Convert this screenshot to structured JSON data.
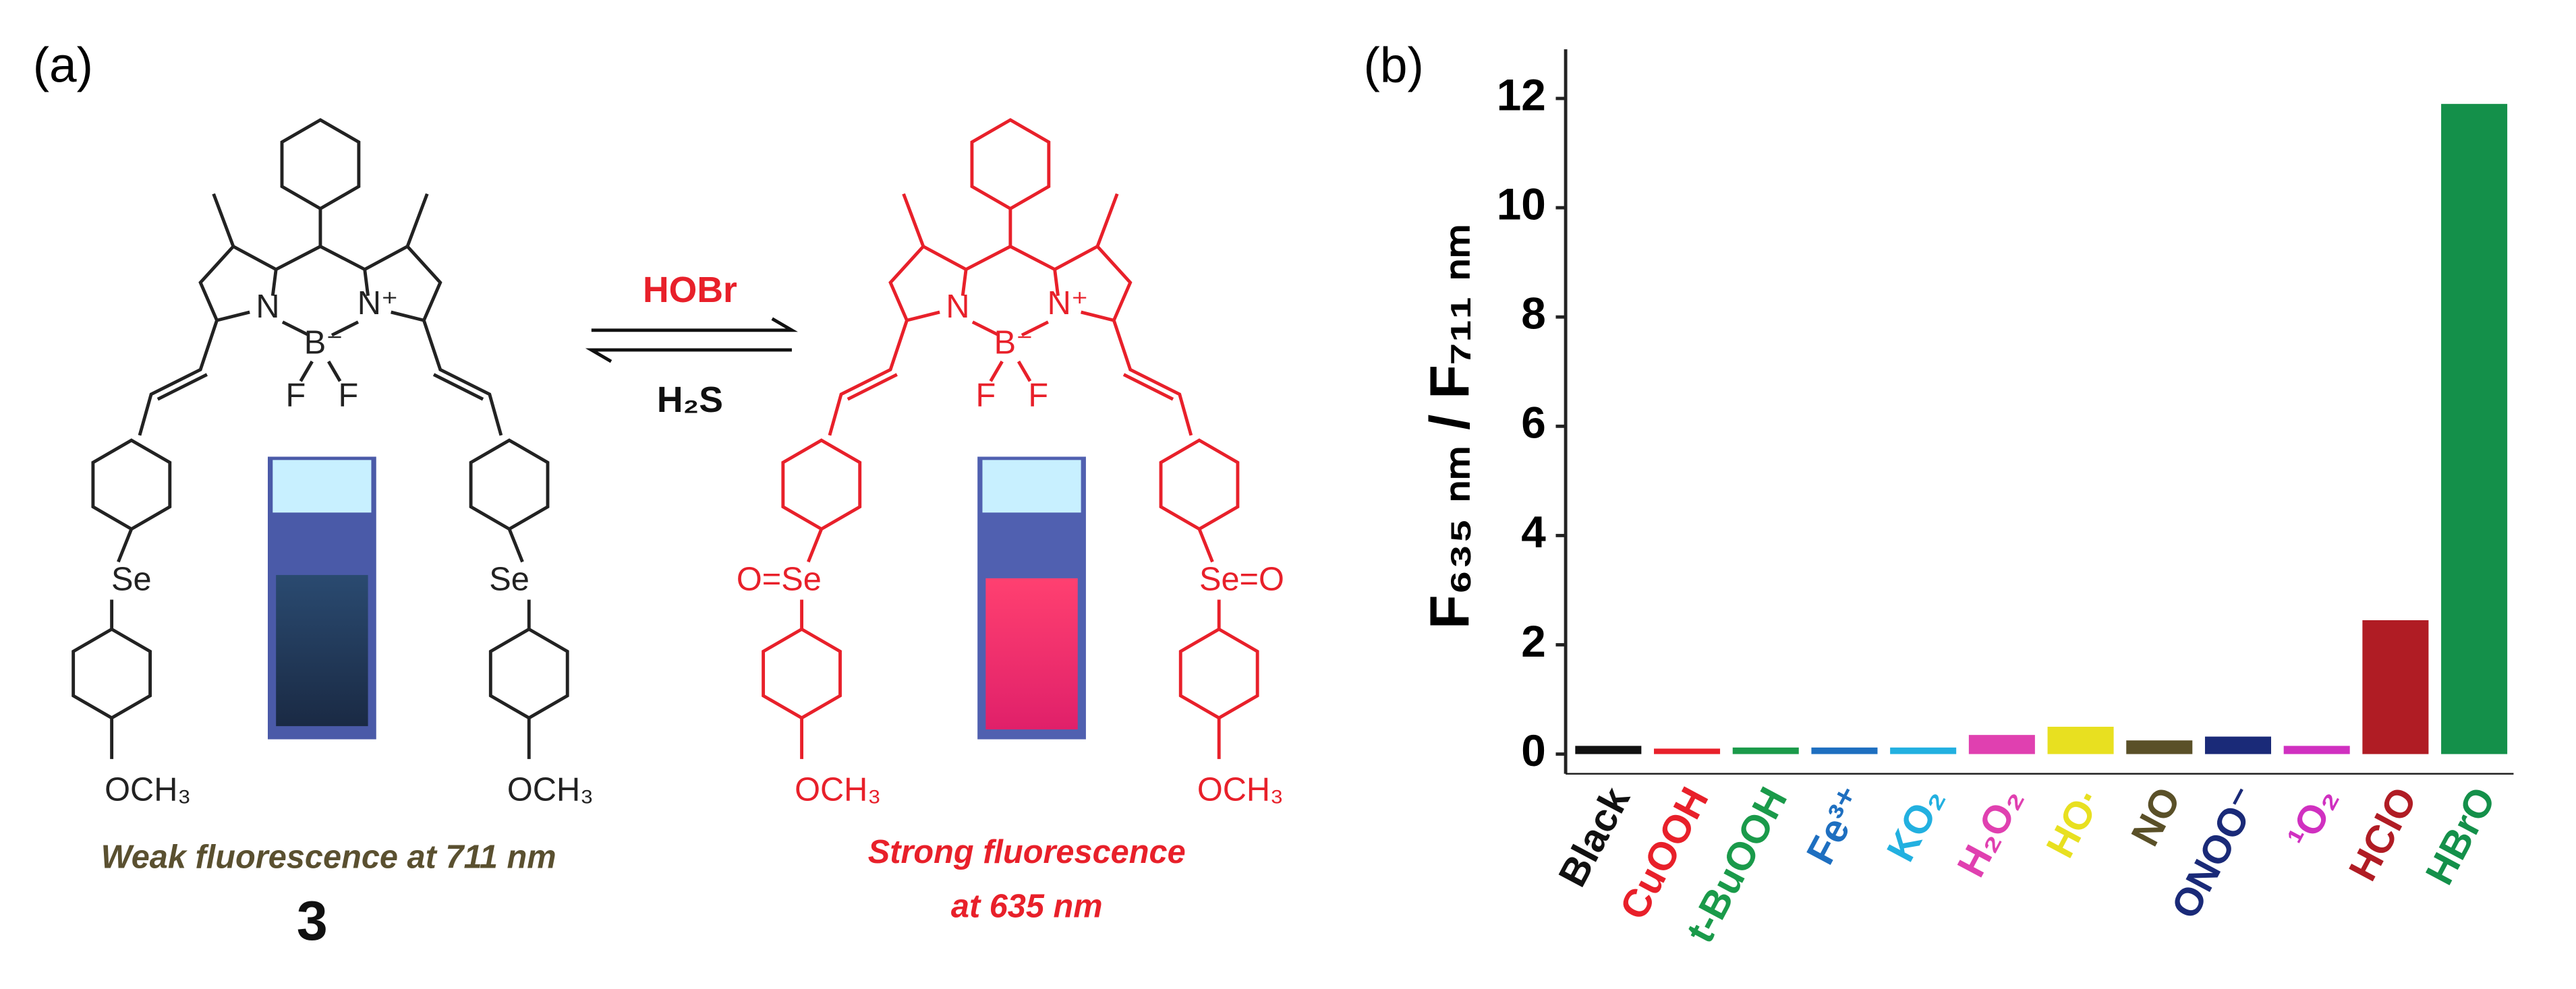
{
  "panel_a": {
    "label": "(a)",
    "reagent_forward": "HOBr",
    "reagent_back": "H₂S",
    "left": {
      "atoms": [
        "N",
        "N⁺",
        "B⁻",
        "F",
        "F",
        "Se",
        "Se",
        "OCH₃",
        "OCH₃"
      ],
      "caption": "Weak fluorescence  at 711 nm",
      "compound": "3"
    },
    "right": {
      "atoms": [
        "N",
        "N⁺",
        "B⁻",
        "F",
        "F",
        "O=Se",
        "Se=O",
        "OCH₃",
        "OCH₃"
      ],
      "caption_lines": [
        "Strong fluorescence",
        "at 635 nm"
      ]
    }
  },
  "chart_data": {
    "type": "bar",
    "panel_label": "(b)",
    "y_label": "F₆₃₅ ₙₘ / F₇₁₁ ₙₘ",
    "categories": [
      "Black",
      "CuOOH",
      "t-BuOOH",
      "Fe³⁺",
      "KO₂",
      "H₂O₂",
      "HO·",
      "NO",
      "ONOO⁻",
      "¹O₂",
      "HClO",
      "HBrO"
    ],
    "values": [
      0.15,
      0.1,
      0.12,
      0.12,
      0.12,
      0.35,
      0.5,
      0.25,
      0.32,
      0.15,
      2.45,
      11.9
    ],
    "colors": [
      "#111111",
      "#e8202a",
      "#1a9a4a",
      "#1e6fc0",
      "#22b0e0",
      "#e040b0",
      "#e8e020",
      "#5a5028",
      "#1a2a78",
      "#d030c0",
      "#b01c24",
      "#14904a"
    ],
    "ylim": [
      0,
      12.9
    ],
    "yticks": [
      0,
      2,
      4,
      6,
      8,
      10,
      12
    ],
    "grid": false
  }
}
